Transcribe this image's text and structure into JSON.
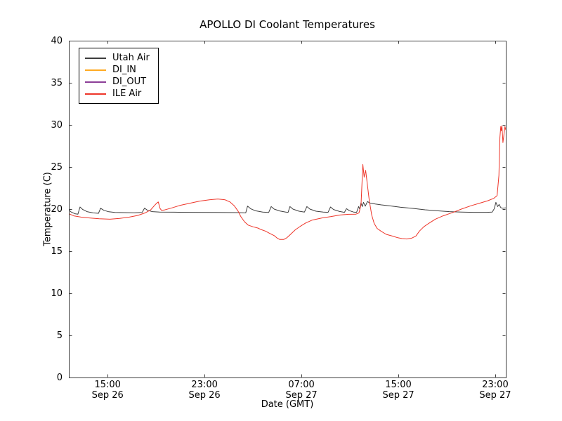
{
  "chart_data": {
    "type": "line",
    "title": "APOLLO DI Coolant Temperatures",
    "xlabel": "Date (GMT)",
    "ylabel": "Temperature (C)",
    "x_encoding": "hours since Sep 26 00:00 GMT",
    "xlim": [
      11.8,
      47.87
    ],
    "ylim": [
      0,
      40
    ],
    "grid": false,
    "legend_position": "upper left",
    "x_ticks": [
      {
        "t": 15,
        "time": "15:00",
        "date": "Sep 26"
      },
      {
        "t": 23,
        "time": "23:00",
        "date": "Sep 26"
      },
      {
        "t": 31,
        "time": "07:00",
        "date": "Sep 27"
      },
      {
        "t": 39,
        "time": "15:00",
        "date": "Sep 27"
      },
      {
        "t": 47,
        "time": "23:00",
        "date": "Sep 27"
      }
    ],
    "y_ticks": [
      0,
      5,
      10,
      15,
      20,
      25,
      30,
      35,
      40
    ],
    "series": [
      {
        "name": "Utah Air",
        "color": "#3d3d3d",
        "points": [
          [
            11.8,
            19.9
          ],
          [
            12.0,
            19.65
          ],
          [
            12.3,
            19.45
          ],
          [
            12.55,
            19.4
          ],
          [
            12.72,
            20.25
          ],
          [
            12.95,
            19.95
          ],
          [
            13.3,
            19.7
          ],
          [
            13.8,
            19.55
          ],
          [
            14.25,
            19.5
          ],
          [
            14.42,
            20.1
          ],
          [
            14.7,
            19.85
          ],
          [
            15.1,
            19.68
          ],
          [
            15.6,
            19.6
          ],
          [
            16.3,
            19.58
          ],
          [
            17.2,
            19.57
          ],
          [
            17.85,
            19.6
          ],
          [
            18.05,
            20.12
          ],
          [
            18.3,
            19.85
          ],
          [
            18.7,
            19.7
          ],
          [
            19.3,
            19.65
          ],
          [
            20.5,
            19.63
          ],
          [
            22.0,
            19.62
          ],
          [
            24.0,
            19.6
          ],
          [
            25.8,
            19.58
          ],
          [
            26.4,
            19.55
          ],
          [
            26.55,
            20.35
          ],
          [
            26.8,
            20.05
          ],
          [
            27.2,
            19.8
          ],
          [
            27.8,
            19.65
          ],
          [
            28.3,
            19.6
          ],
          [
            28.5,
            20.3
          ],
          [
            28.75,
            20.0
          ],
          [
            29.2,
            19.78
          ],
          [
            29.7,
            19.65
          ],
          [
            29.9,
            19.62
          ],
          [
            30.05,
            20.3
          ],
          [
            30.3,
            20.0
          ],
          [
            30.8,
            19.75
          ],
          [
            31.25,
            19.65
          ],
          [
            31.45,
            20.3
          ],
          [
            31.7,
            20.0
          ],
          [
            32.2,
            19.75
          ],
          [
            32.8,
            19.65
          ],
          [
            33.2,
            19.62
          ],
          [
            33.4,
            20.25
          ],
          [
            33.65,
            19.95
          ],
          [
            34.15,
            19.72
          ],
          [
            34.55,
            19.62
          ],
          [
            34.72,
            20.05
          ],
          [
            34.95,
            19.82
          ],
          [
            35.3,
            19.65
          ],
          [
            35.55,
            19.62
          ],
          [
            35.72,
            20.3
          ],
          [
            35.82,
            20.0
          ],
          [
            35.92,
            20.75
          ],
          [
            36.02,
            20.3
          ],
          [
            36.12,
            20.8
          ],
          [
            36.27,
            20.35
          ],
          [
            36.45,
            20.9
          ],
          [
            36.65,
            20.72
          ],
          [
            37.1,
            20.6
          ],
          [
            37.6,
            20.5
          ],
          [
            38.3,
            20.38
          ],
          [
            39.2,
            20.22
          ],
          [
            40.2,
            20.08
          ],
          [
            41.2,
            19.92
          ],
          [
            42.2,
            19.8
          ],
          [
            43.2,
            19.7
          ],
          [
            44.2,
            19.65
          ],
          [
            45.2,
            19.62
          ],
          [
            46.3,
            19.62
          ],
          [
            46.75,
            19.65
          ],
          [
            46.92,
            20.05
          ],
          [
            47.05,
            20.8
          ],
          [
            47.2,
            20.3
          ],
          [
            47.32,
            20.55
          ],
          [
            47.45,
            20.18
          ],
          [
            47.6,
            20.1
          ],
          [
            47.87,
            20.15
          ]
        ]
      },
      {
        "name": "DI_IN",
        "color": "#ffaa22",
        "points": []
      },
      {
        "name": "DI_OUT",
        "color": "#8c3e97",
        "points": []
      },
      {
        "name": "ILE Air",
        "color": "#ee3529",
        "points": [
          [
            11.8,
            19.45
          ],
          [
            12.2,
            19.2
          ],
          [
            12.8,
            19.05
          ],
          [
            13.5,
            18.95
          ],
          [
            14.3,
            18.85
          ],
          [
            15.2,
            18.8
          ],
          [
            16.0,
            18.9
          ],
          [
            16.8,
            19.05
          ],
          [
            17.5,
            19.25
          ],
          [
            18.1,
            19.55
          ],
          [
            18.55,
            19.9
          ],
          [
            18.85,
            20.4
          ],
          [
            19.05,
            20.7
          ],
          [
            19.18,
            20.85
          ],
          [
            19.32,
            20.1
          ],
          [
            19.45,
            19.85
          ],
          [
            19.7,
            19.9
          ],
          [
            20.2,
            20.1
          ],
          [
            21.0,
            20.45
          ],
          [
            21.8,
            20.7
          ],
          [
            22.6,
            20.95
          ],
          [
            23.4,
            21.1
          ],
          [
            24.1,
            21.2
          ],
          [
            24.7,
            21.1
          ],
          [
            25.1,
            20.85
          ],
          [
            25.45,
            20.4
          ],
          [
            25.75,
            19.8
          ],
          [
            26.0,
            19.1
          ],
          [
            26.3,
            18.5
          ],
          [
            26.6,
            18.1
          ],
          [
            27.0,
            17.9
          ],
          [
            27.4,
            17.75
          ],
          [
            27.7,
            17.55
          ],
          [
            28.0,
            17.4
          ],
          [
            28.4,
            17.1
          ],
          [
            28.75,
            16.85
          ],
          [
            29.0,
            16.55
          ],
          [
            29.2,
            16.4
          ],
          [
            29.55,
            16.4
          ],
          [
            29.8,
            16.6
          ],
          [
            30.1,
            17.0
          ],
          [
            30.5,
            17.55
          ],
          [
            30.9,
            17.95
          ],
          [
            31.35,
            18.35
          ],
          [
            31.9,
            18.7
          ],
          [
            32.7,
            18.95
          ],
          [
            33.4,
            19.1
          ],
          [
            34.2,
            19.3
          ],
          [
            34.9,
            19.38
          ],
          [
            35.5,
            19.4
          ],
          [
            35.75,
            19.55
          ],
          [
            35.92,
            20.5
          ],
          [
            36.07,
            25.3
          ],
          [
            36.18,
            23.8
          ],
          [
            36.3,
            24.6
          ],
          [
            36.45,
            22.8
          ],
          [
            36.6,
            21.0
          ],
          [
            36.8,
            19.3
          ],
          [
            37.0,
            18.3
          ],
          [
            37.25,
            17.7
          ],
          [
            37.6,
            17.35
          ],
          [
            38.0,
            17.0
          ],
          [
            38.5,
            16.8
          ],
          [
            38.95,
            16.6
          ],
          [
            39.3,
            16.5
          ],
          [
            39.7,
            16.45
          ],
          [
            40.1,
            16.55
          ],
          [
            40.45,
            16.8
          ],
          [
            40.75,
            17.4
          ],
          [
            41.1,
            17.9
          ],
          [
            41.5,
            18.3
          ],
          [
            42.05,
            18.8
          ],
          [
            42.7,
            19.2
          ],
          [
            43.5,
            19.6
          ],
          [
            44.2,
            20.0
          ],
          [
            45.0,
            20.4
          ],
          [
            45.7,
            20.7
          ],
          [
            46.4,
            21.0
          ],
          [
            46.9,
            21.3
          ],
          [
            47.15,
            21.6
          ],
          [
            47.3,
            24.0
          ],
          [
            47.38,
            28.5
          ],
          [
            47.45,
            29.8
          ],
          [
            47.5,
            29.3
          ],
          [
            47.55,
            29.9
          ],
          [
            47.63,
            27.9
          ],
          [
            47.72,
            28.9
          ],
          [
            47.8,
            29.8
          ],
          [
            47.87,
            29.4
          ]
        ]
      }
    ],
    "colors": {
      "frame": "#3d3d3d",
      "background": "#ffffff",
      "text": "#000000"
    }
  }
}
